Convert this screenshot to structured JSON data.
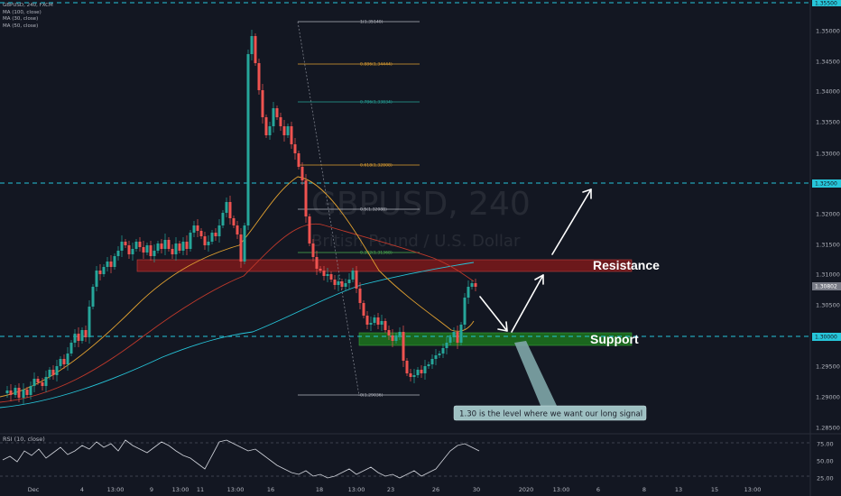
{
  "header": {
    "symbol_line": "GBPUSD, 240, FXCM",
    "ma_lines": [
      "MA (100, close)",
      "MA (30, close)",
      "MA (50, close)"
    ],
    "rsi_label": "RSI (10, close)"
  },
  "watermark": {
    "ticker": "GBPUSD, 240",
    "description": "British Pound / U.S. Dollar"
  },
  "price_axis": {
    "ticks": [
      "1.35000",
      "1.34500",
      "1.34000",
      "1.33500",
      "1.33000",
      "1.32000",
      "1.31500",
      "1.31000",
      "1.30500",
      "1.29500",
      "1.29000",
      "1.28500"
    ],
    "tag_top": "1.35500",
    "tag_resistance": "1.32500",
    "tag_current": "1.30802",
    "tag_support": "1.30000"
  },
  "rsi_axis": {
    "ticks": [
      "75.00",
      "50.00",
      "25.00"
    ]
  },
  "time_axis": {
    "ticks": [
      "Dec",
      "4",
      "13:00",
      "9",
      "13:00",
      "11",
      "13:00",
      "16",
      "18",
      "13:00",
      "23",
      "26",
      "30",
      "2020",
      "13:00",
      "6",
      "8",
      "13",
      "15",
      "13:00"
    ]
  },
  "fibonacci": [
    {
      "ratio": "1",
      "label": "1(1.35140)",
      "color": "#b2b5be"
    },
    {
      "ratio": "0.886",
      "label": "0.886(1.34444)",
      "color": "#e0a030"
    },
    {
      "ratio": "0.786",
      "label": "0.786(1.33834)",
      "color": "#26a69a"
    },
    {
      "ratio": "0.618",
      "label": "0.618(1.32808)",
      "color": "#e0a030"
    },
    {
      "ratio": "0.5",
      "label": "0.5(1.32088)",
      "color": "#b2b5be"
    },
    {
      "ratio": "0.382",
      "label": "0.382(1.31368)",
      "color": "#4caf50"
    },
    {
      "ratio": "0",
      "label": "0(1.29036)",
      "color": "#b2b5be"
    }
  ],
  "zones": {
    "resistance_label": "Resistance",
    "support_label": "Support",
    "resistance_color": "#8b1a1a",
    "support_color": "#1e7a1e"
  },
  "callout": {
    "text": "1.30 is the level where we want our long signal"
  },
  "colors": {
    "background": "#131722",
    "bull": "#26a69a",
    "bear": "#ef5350",
    "dash_line": "#26c6da",
    "ma100": "#26c6da",
    "ma30": "#e0a030",
    "ma50": "#c0392b"
  }
}
